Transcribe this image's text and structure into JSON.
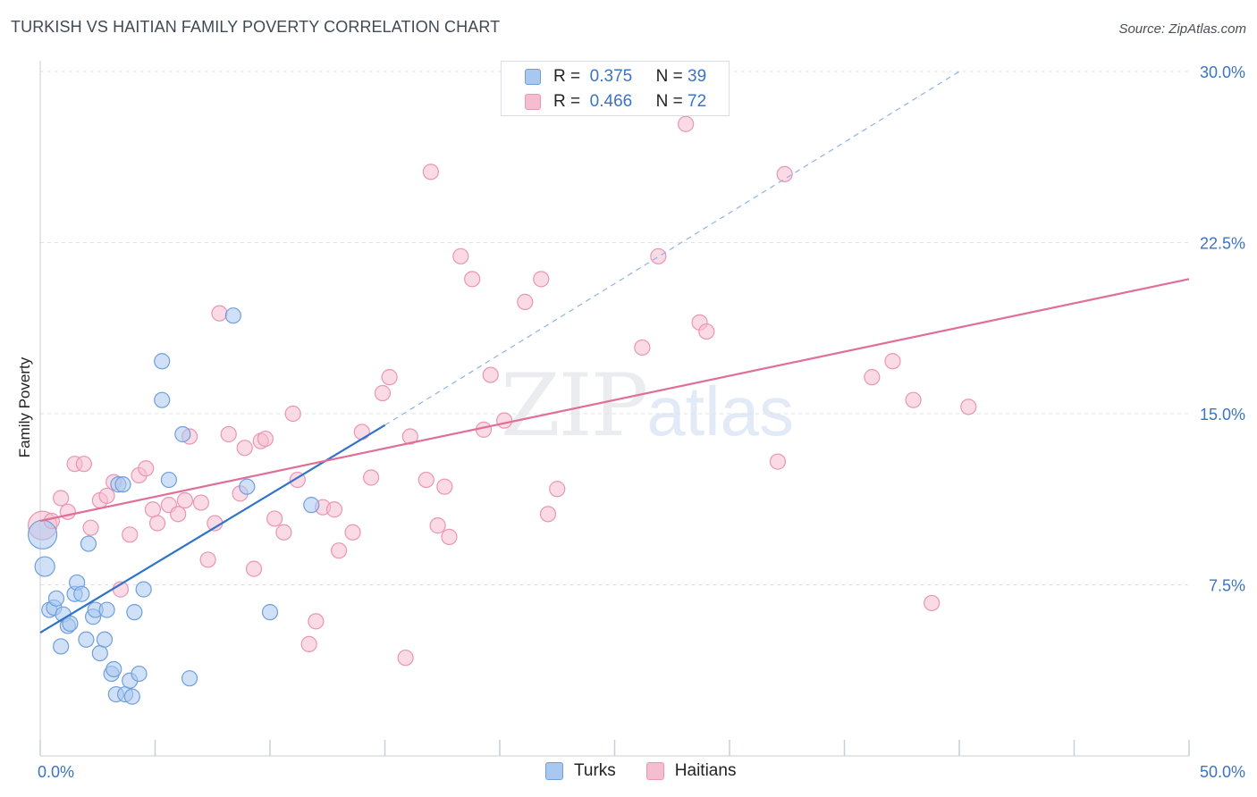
{
  "title": "TURKISH VS HAITIAN FAMILY POVERTY CORRELATION CHART",
  "source": "Source: ZipAtlas.com",
  "watermark": {
    "zip": "ZIP",
    "atlas": "atlas"
  },
  "legend": {
    "turks": {
      "r_label": "R =",
      "r_value": "0.375",
      "n_label": "N =",
      "n_value": "39"
    },
    "haitians": {
      "r_label": "R =",
      "r_value": "0.466",
      "n_label": "N =",
      "n_value": "72"
    }
  },
  "colors": {
    "turks_fill": "#a9c8f0",
    "turks_stroke": "#6f9fdc",
    "turks_line": "#2f74c9",
    "haitians_fill": "#f5bdd0",
    "haitians_stroke": "#ea95b3",
    "haitians_line": "#e06f98",
    "tick_label": "#3a74c4",
    "grid": "#dde3ea"
  },
  "chart_data": {
    "type": "scatter",
    "title": "TURKISH VS HAITIAN FAMILY POVERTY CORRELATION CHART",
    "xlabel": "",
    "ylabel": "Family Poverty",
    "xlim": [
      0,
      50
    ],
    "ylim": [
      0,
      30
    ],
    "x_tick_labels": [
      "0.0%",
      "50.0%"
    ],
    "y_tick_labels": [
      "7.5%",
      "15.0%",
      "22.5%",
      "30.0%"
    ],
    "y_ticks": [
      7.5,
      15,
      22.5,
      30
    ],
    "grid": true,
    "legend_position": "top-center",
    "series": [
      {
        "name": "Turks",
        "trend": {
          "x": [
            0,
            15
          ],
          "y": [
            5.4,
            14.5
          ],
          "dashed_extension_to": [
            40,
            30.0
          ]
        },
        "points": [
          [
            0.1,
            9.7,
            "l"
          ],
          [
            0.2,
            8.3,
            "m"
          ],
          [
            0.4,
            6.4
          ],
          [
            0.6,
            6.5
          ],
          [
            0.7,
            6.9
          ],
          [
            0.9,
            4.8
          ],
          [
            1.0,
            6.2
          ],
          [
            1.2,
            5.7
          ],
          [
            1.3,
            5.8
          ],
          [
            1.5,
            7.1
          ],
          [
            1.6,
            7.6
          ],
          [
            1.8,
            7.1
          ],
          [
            2.0,
            5.1
          ],
          [
            2.1,
            9.3
          ],
          [
            2.3,
            6.1
          ],
          [
            2.4,
            6.4
          ],
          [
            2.6,
            4.5
          ],
          [
            2.8,
            5.1
          ],
          [
            2.9,
            6.4
          ],
          [
            3.1,
            3.6
          ],
          [
            3.2,
            3.8
          ],
          [
            3.3,
            2.7
          ],
          [
            3.4,
            11.9
          ],
          [
            3.6,
            11.9
          ],
          [
            3.7,
            2.7
          ],
          [
            3.9,
            3.3
          ],
          [
            4.0,
            2.6
          ],
          [
            4.1,
            6.3
          ],
          [
            4.3,
            3.6
          ],
          [
            4.5,
            7.3
          ],
          [
            5.3,
            17.3
          ],
          [
            5.3,
            15.6
          ],
          [
            5.6,
            12.1
          ],
          [
            6.2,
            14.1
          ],
          [
            6.5,
            3.4
          ],
          [
            8.4,
            19.3
          ],
          [
            9.0,
            11.8
          ],
          [
            10.0,
            6.3
          ],
          [
            11.8,
            11.0
          ]
        ]
      },
      {
        "name": "Haitians",
        "trend": {
          "x": [
            0,
            50
          ],
          "y": [
            10.3,
            20.9
          ]
        },
        "points": [
          [
            0.1,
            10.1,
            "l"
          ],
          [
            0.5,
            10.3
          ],
          [
            0.9,
            11.3
          ],
          [
            1.2,
            10.7
          ],
          [
            1.5,
            12.8
          ],
          [
            1.9,
            12.8
          ],
          [
            2.2,
            10.0
          ],
          [
            2.6,
            11.2
          ],
          [
            2.9,
            11.4
          ],
          [
            3.2,
            12.0
          ],
          [
            3.5,
            7.3
          ],
          [
            3.9,
            9.7
          ],
          [
            4.3,
            12.3
          ],
          [
            4.6,
            12.6
          ],
          [
            4.9,
            10.8
          ],
          [
            5.1,
            10.2
          ],
          [
            5.6,
            11.0
          ],
          [
            6.0,
            10.6
          ],
          [
            6.3,
            11.2
          ],
          [
            6.5,
            14.0
          ],
          [
            7.0,
            11.1
          ],
          [
            7.3,
            8.6
          ],
          [
            7.6,
            10.2
          ],
          [
            7.8,
            19.4
          ],
          [
            8.2,
            14.1
          ],
          [
            8.7,
            11.5
          ],
          [
            8.9,
            13.5
          ],
          [
            9.3,
            8.2
          ],
          [
            9.6,
            13.8
          ],
          [
            9.8,
            13.9
          ],
          [
            10.2,
            10.4
          ],
          [
            10.6,
            9.8
          ],
          [
            11.0,
            15.0
          ],
          [
            11.2,
            12.1
          ],
          [
            11.7,
            4.9
          ],
          [
            12.0,
            5.9
          ],
          [
            12.3,
            10.9
          ],
          [
            12.8,
            10.8
          ],
          [
            13.0,
            9.0
          ],
          [
            13.6,
            9.8
          ],
          [
            14.0,
            14.2
          ],
          [
            14.4,
            12.2
          ],
          [
            14.9,
            15.9
          ],
          [
            15.2,
            16.6
          ],
          [
            15.9,
            4.3
          ],
          [
            16.1,
            14.0
          ],
          [
            16.8,
            12.1
          ],
          [
            17.0,
            25.6
          ],
          [
            17.3,
            10.1
          ],
          [
            17.6,
            11.8
          ],
          [
            17.8,
            9.6
          ],
          [
            18.3,
            21.9
          ],
          [
            18.8,
            20.9
          ],
          [
            19.3,
            14.3
          ],
          [
            19.6,
            16.7
          ],
          [
            20.2,
            14.7
          ],
          [
            21.1,
            19.9
          ],
          [
            21.8,
            20.9
          ],
          [
            22.1,
            10.6
          ],
          [
            22.5,
            11.7
          ],
          [
            26.2,
            17.9
          ],
          [
            26.9,
            21.9
          ],
          [
            28.1,
            27.7
          ],
          [
            28.7,
            19.0
          ],
          [
            29.0,
            18.6
          ],
          [
            32.1,
            12.9
          ],
          [
            32.4,
            25.5
          ],
          [
            36.2,
            16.6
          ],
          [
            37.1,
            17.3
          ],
          [
            38.0,
            15.6
          ],
          [
            38.8,
            6.7
          ],
          [
            40.4,
            15.3
          ]
        ]
      }
    ]
  }
}
